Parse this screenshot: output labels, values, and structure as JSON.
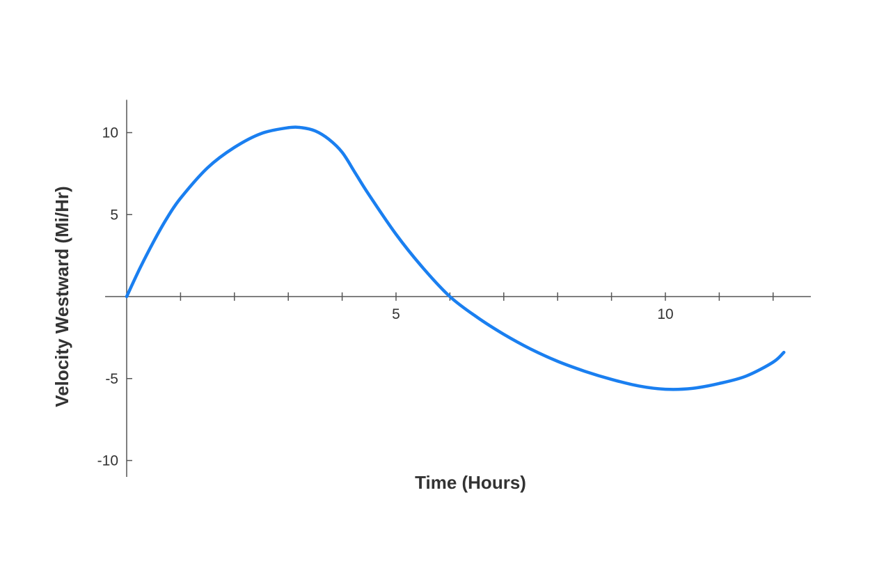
{
  "chart_data": {
    "type": "line",
    "title": "",
    "xlabel": "Time (Hours)",
    "ylabel": "Velocity Westward (Mi/Hr)",
    "xlim": [
      -0.4,
      12.7
    ],
    "ylim": [
      -11,
      12
    ],
    "x_ticks_minor": [
      1,
      2,
      3,
      4,
      5,
      6,
      7,
      8,
      9,
      10,
      11,
      12
    ],
    "x_tick_labels": [
      {
        "value": 5,
        "label": "5"
      },
      {
        "value": 10,
        "label": "10"
      }
    ],
    "y_ticks": [
      {
        "value": 10,
        "label": "10"
      },
      {
        "value": 5,
        "label": "5"
      },
      {
        "value": -5,
        "label": "-5"
      },
      {
        "value": -10,
        "label": "-10"
      }
    ],
    "grid": false,
    "legend": "none",
    "series": [
      {
        "color": "#1a7ff0",
        "x": [
          0,
          0.25,
          0.5,
          0.75,
          1,
          1.5,
          2,
          2.5,
          3,
          3.25,
          3.5,
          3.75,
          4,
          4.25,
          4.5,
          5,
          5.5,
          6,
          6.5,
          7,
          7.5,
          8,
          8.5,
          9,
          9.5,
          10,
          10.5,
          11,
          11.5,
          12,
          12.2
        ],
        "y": [
          0,
          1.75,
          3.35,
          4.8,
          6.0,
          7.85,
          9.1,
          9.95,
          10.3,
          10.3,
          10.1,
          9.6,
          8.8,
          7.5,
          6.2,
          3.8,
          1.75,
          0,
          -1.25,
          -2.3,
          -3.2,
          -3.95,
          -4.55,
          -5.05,
          -5.45,
          -5.65,
          -5.6,
          -5.3,
          -4.85,
          -4.0,
          -3.4
        ]
      }
    ]
  }
}
